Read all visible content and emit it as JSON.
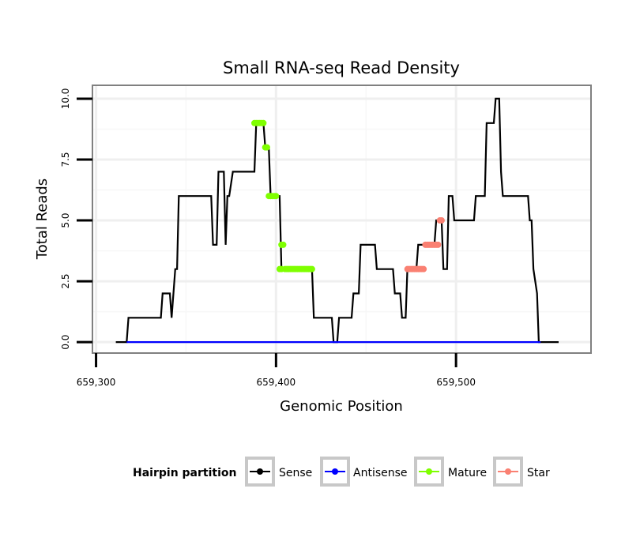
{
  "chart_data": {
    "type": "line",
    "title": "Small RNA-seq Read Density",
    "xlabel": "Genomic Position",
    "ylabel": "Total Reads",
    "xlim": [
      659298,
      659575
    ],
    "ylim": [
      -0.45,
      10.55
    ],
    "x_ticks": [
      659300,
      659400,
      659500
    ],
    "x_tick_labels": [
      "659,300",
      "659,400",
      "659,500"
    ],
    "y_ticks": [
      0,
      2.5,
      5,
      7.5,
      10
    ],
    "y_tick_labels": [
      "0.0",
      "2.5",
      "5.0",
      "7.5",
      "10.0"
    ],
    "legend": {
      "title": "Hairpin partition",
      "position": "bottom",
      "entries": [
        {
          "name": "Sense",
          "color": "#000000"
        },
        {
          "name": "Antisense",
          "color": "#0000ff"
        },
        {
          "name": "Mature",
          "color": "#7fff00"
        },
        {
          "name": "Star",
          "color": "#fa8072"
        }
      ]
    },
    "series": [
      {
        "name": "Sense",
        "color": "#000000",
        "style": "line",
        "x": [
          659311,
          659317,
          659318,
          659336,
          659337,
          659341,
          659342,
          659343,
          659344,
          659345,
          659346,
          659347,
          659348,
          659364,
          659365,
          659367,
          659368,
          659371,
          659372,
          659373,
          659374,
          659376,
          659377,
          659388,
          659389,
          659393,
          659394,
          659396,
          659397,
          659402,
          659403,
          659405,
          659406,
          659420,
          659421,
          659431,
          659432,
          659434,
          659435,
          659442,
          659443,
          659446,
          659447,
          659455,
          659456,
          659465,
          659466,
          659469,
          659470,
          659472,
          659473,
          659478,
          659479,
          659488,
          659489,
          659492,
          659493,
          659495,
          659496,
          659498,
          659499,
          659510,
          659511,
          659516,
          659517,
          659521,
          659522,
          659524,
          659525,
          659526,
          659527,
          659540,
          659541,
          659542,
          659543,
          659545,
          659546,
          659547,
          659557
        ],
        "y": [
          0,
          0,
          1,
          1,
          2,
          2,
          1,
          2,
          3,
          3,
          6,
          6,
          6,
          6,
          4,
          4,
          7,
          7,
          4,
          6,
          6,
          7,
          7,
          7,
          9,
          9,
          8,
          8,
          6,
          6,
          3,
          3,
          3,
          3,
          1,
          1,
          0,
          0,
          1,
          1,
          2,
          2,
          4,
          4,
          3,
          3,
          2,
          2,
          1,
          1,
          3,
          3,
          4,
          4,
          5,
          5,
          3,
          3,
          6,
          6,
          5,
          5,
          6,
          6,
          9,
          9,
          10,
          10,
          7,
          6,
          6,
          6,
          5,
          5,
          3,
          2,
          0,
          0,
          0
        ]
      },
      {
        "name": "Antisense",
        "color": "#0000ff",
        "style": "line",
        "x": [
          659317,
          659547
        ],
        "y": [
          0,
          0
        ]
      },
      {
        "name": "Mature",
        "color": "#7fff00",
        "style": "points",
        "x": [
          659388,
          659389,
          659390,
          659391,
          659392,
          659393,
          659394,
          659395,
          659396,
          659397,
          659398,
          659399,
          659400,
          659402,
          659403,
          659403,
          659404,
          659405,
          659406,
          659407,
          659408,
          659409,
          659410,
          659411,
          659412,
          659413,
          659414,
          659415,
          659416,
          659417,
          659418,
          659419,
          659420
        ],
        "y": [
          9,
          9,
          9,
          9,
          9,
          9,
          8,
          8,
          6,
          6,
          6,
          6,
          6,
          3,
          3,
          4,
          4,
          3,
          3,
          3,
          3,
          3,
          3,
          3,
          3,
          3,
          3,
          3,
          3,
          3,
          3,
          3,
          3
        ]
      },
      {
        "name": "Star",
        "color": "#fa8072",
        "style": "points",
        "x": [
          659473,
          659474,
          659475,
          659476,
          659477,
          659478,
          659479,
          659480,
          659481,
          659482,
          659483,
          659484,
          659485,
          659486,
          659487,
          659488,
          659489,
          659490,
          659491,
          659492
        ],
        "y": [
          3,
          3,
          3,
          3,
          3,
          3,
          3,
          3,
          3,
          3,
          4,
          4,
          4,
          4,
          4,
          4,
          4,
          4,
          5,
          5
        ]
      }
    ]
  }
}
